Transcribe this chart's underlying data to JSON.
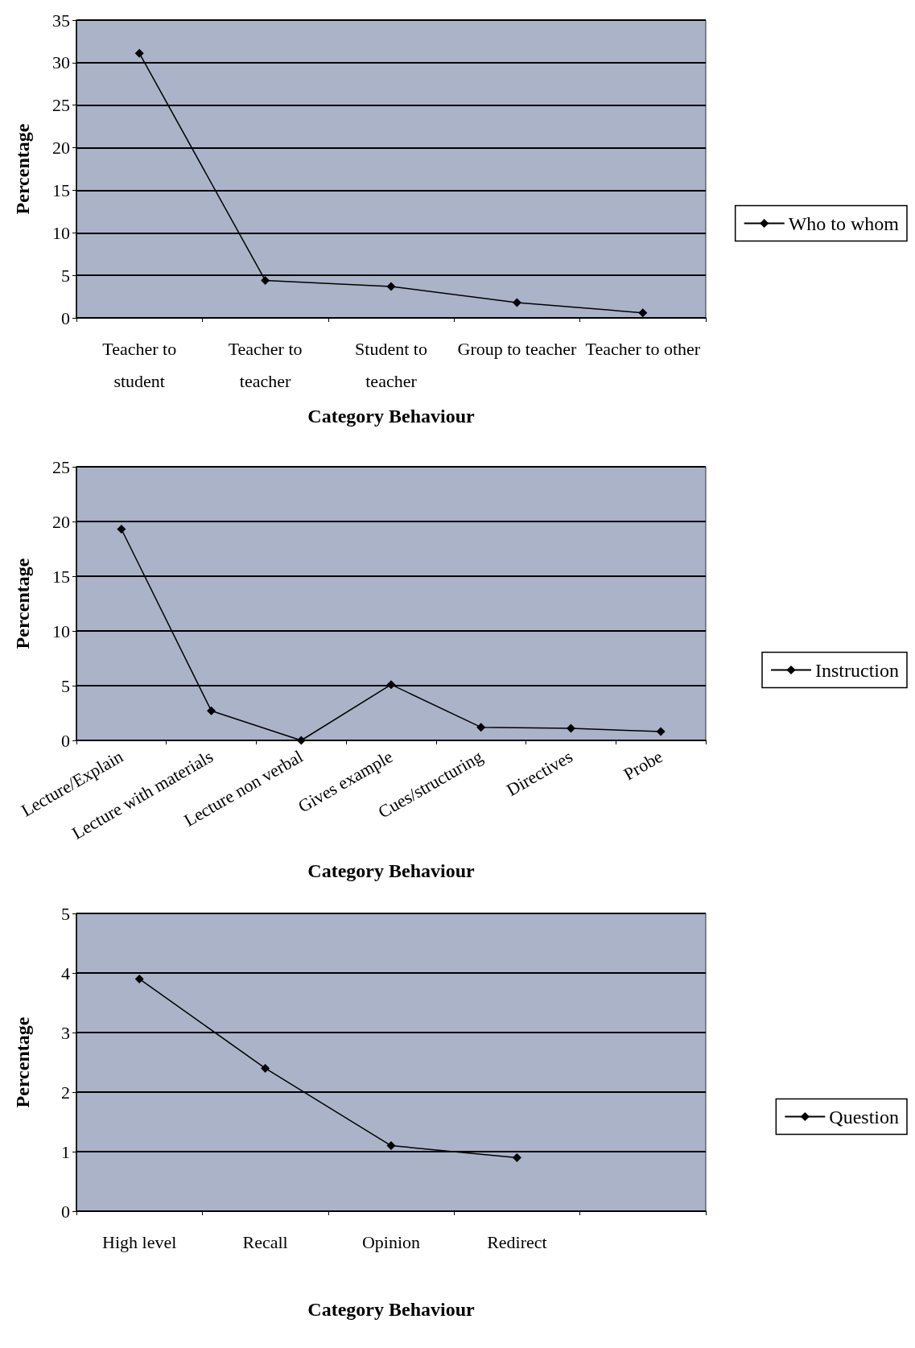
{
  "chart_data": [
    {
      "type": "line",
      "xlabel": "Category Behaviour",
      "ylabel": "Percentage",
      "categories": [
        "Teacher to\nstudent",
        "Teacher to\nteacher",
        "Student to\nteacher",
        "Group to teacher",
        "Teacher to other"
      ],
      "series": [
        {
          "name": "Who to whom",
          "color": "#000000",
          "values": [
            31.1,
            4.4,
            3.7,
            1.8,
            0.6
          ]
        }
      ],
      "ylim": [
        0,
        35
      ],
      "yticks": [
        0,
        5,
        10,
        15,
        20,
        25,
        30,
        35
      ],
      "grid": "y",
      "legend": "right",
      "marker": "diamond",
      "line_style": "solid"
    },
    {
      "type": "line",
      "xlabel": "Category Behaviour",
      "ylabel": "Percentage",
      "categories": [
        "Lecture/Explain",
        "Lecture with materials",
        "Lecture non verbal",
        "Gives example",
        "Cues/structuring",
        "Directives",
        "Probe"
      ],
      "series": [
        {
          "name": "Instruction",
          "color": "#000000",
          "values": [
            19.3,
            2.7,
            0,
            5.1,
            1.2,
            1.1,
            0.8
          ]
        }
      ],
      "ylim": [
        0,
        25
      ],
      "yticks": [
        0,
        5,
        10,
        15,
        20,
        25
      ],
      "grid": "y",
      "legend": "right",
      "marker": "diamond",
      "line_style": "solid"
    },
    {
      "type": "line",
      "xlabel": "Category Behaviour",
      "ylabel": "Percentage",
      "categories": [
        "High level",
        "Recall",
        "Opinion",
        "Redirect",
        null
      ],
      "series": [
        {
          "name": "Question",
          "color": "#000000",
          "values": [
            3.9,
            2.4,
            1.1,
            0.9,
            null
          ]
        }
      ],
      "ylim": [
        0,
        5
      ],
      "yticks": [
        0,
        1,
        2,
        3,
        4,
        5
      ],
      "grid": "y",
      "legend": "right",
      "marker": "diamond",
      "line_style": "solid"
    }
  ]
}
